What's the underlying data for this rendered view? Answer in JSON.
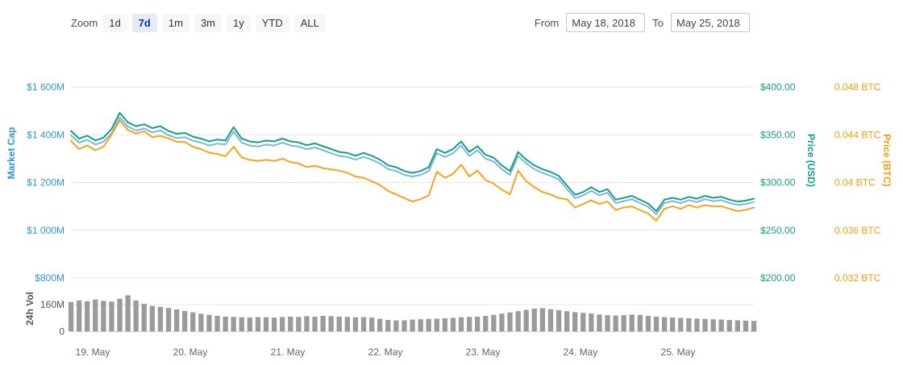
{
  "toolbar": {
    "zoom_label": "Zoom",
    "zoom_buttons": [
      {
        "label": "1d",
        "active": false
      },
      {
        "label": "7d",
        "active": true
      },
      {
        "label": "1m",
        "active": false
      },
      {
        "label": "3m",
        "active": false
      },
      {
        "label": "1y",
        "active": false
      },
      {
        "label": "YTD",
        "active": false
      },
      {
        "label": "ALL",
        "active": false
      }
    ],
    "from_label": "From",
    "from_value": "May 18, 2018",
    "to_label": "To",
    "to_value": "May 25, 2018"
  },
  "chart_data": {
    "type": "line",
    "title": "",
    "date_range": [
      "May 18, 2018",
      "May 25, 2018"
    ],
    "axes": {
      "market_cap": {
        "title": "Market Cap",
        "color": "#3097d1",
        "range": [
          800,
          1600
        ],
        "ticks": [
          {
            "label": "$1 600M",
            "value": 1600
          },
          {
            "label": "$1 400M",
            "value": 1400
          },
          {
            "label": "$1 200M",
            "value": 1200
          },
          {
            "label": "$1 000M",
            "value": 1000
          },
          {
            "label": "$800M",
            "value": 800
          }
        ]
      },
      "price_usd": {
        "title": "Price (USD)",
        "color": "#16a085",
        "range": [
          200,
          400
        ],
        "ticks": [
          {
            "label": "$400.00",
            "value": 400
          },
          {
            "label": "$350.00",
            "value": 350
          },
          {
            "label": "$300.00",
            "value": 300
          },
          {
            "label": "$250.00",
            "value": 250
          },
          {
            "label": "$200.00",
            "value": 200
          }
        ]
      },
      "price_btc": {
        "title": "Price (BTC)",
        "color": "#f39c12",
        "range": [
          0.032,
          0.048
        ],
        "ticks": [
          {
            "label": "0.048 BTC",
            "value": 0.048
          },
          {
            "label": "0.044 BTC",
            "value": 0.044
          },
          {
            "label": "0.04 BTC",
            "value": 0.04
          },
          {
            "label": "0.036 BTC",
            "value": 0.036
          },
          {
            "label": "0.032 BTC",
            "value": 0.032
          }
        ]
      },
      "volume": {
        "title": "24h Vol",
        "color": "#555555",
        "range": [
          0,
          160
        ],
        "ticks": [
          {
            "label": "160M",
            "value": 160
          },
          {
            "label": "0",
            "value": 0
          }
        ]
      }
    },
    "xticks": {
      "labels": [
        "19. May",
        "20. May",
        "21. May",
        "22. May",
        "23. May",
        "24. May",
        "25. May"
      ],
      "fracs": [
        0.0319,
        0.1747,
        0.3176,
        0.4604,
        0.6033,
        0.7461,
        0.889
      ]
    },
    "series": [
      {
        "name": "Market Cap",
        "axis": "market_cap",
        "kind": "line",
        "color": "#7fb5e3",
        "unit": "USD millions",
        "values": [
          1398,
          1367,
          1379,
          1359,
          1371,
          1406,
          1473,
          1434,
          1418,
          1426,
          1410,
          1418,
          1398,
          1386,
          1390,
          1375,
          1367,
          1355,
          1363,
          1359,
          1414,
          1367,
          1355,
          1351,
          1359,
          1355,
          1367,
          1355,
          1351,
          1339,
          1347,
          1335,
          1323,
          1311,
          1307,
          1296,
          1307,
          1296,
          1280,
          1256,
          1248,
          1232,
          1225,
          1232,
          1248,
          1323,
          1307,
          1323,
          1355,
          1311,
          1335,
          1300,
          1288,
          1256,
          1232,
          1311,
          1280,
          1256,
          1240,
          1228,
          1213,
          1173,
          1134,
          1146,
          1165,
          1146,
          1157,
          1114,
          1122,
          1130,
          1114,
          1098,
          1067,
          1114,
          1122,
          1114,
          1126,
          1118,
          1130,
          1122,
          1126,
          1114,
          1106,
          1110,
          1118
        ]
      },
      {
        "name": "Price (USD)",
        "axis": "price_usd",
        "kind": "line",
        "color": "#16a085",
        "unit": "USD",
        "values": [
          354,
          346,
          349,
          344,
          347,
          356,
          373,
          363,
          359,
          361,
          357,
          359,
          354,
          351,
          352,
          348,
          346,
          343,
          345,
          344,
          358,
          346,
          343,
          342,
          344,
          343,
          346,
          343,
          342,
          339,
          341,
          338,
          335,
          332,
          331,
          328,
          331,
          328,
          324,
          318,
          316,
          312,
          310,
          312,
          316,
          335,
          331,
          335,
          343,
          332,
          338,
          329,
          326,
          318,
          312,
          332,
          324,
          318,
          314,
          311,
          307,
          297,
          287,
          290,
          295,
          290,
          293,
          282,
          284,
          286,
          282,
          278,
          270,
          282,
          284,
          282,
          285,
          283,
          286,
          284,
          285,
          282,
          280,
          281,
          283
        ]
      },
      {
        "name": "Price (BTC)",
        "axis": "price_btc",
        "kind": "line",
        "color": "#f8a31c",
        "unit": "BTC",
        "values": [
          0.0435,
          0.0428,
          0.0431,
          0.0427,
          0.043,
          0.044,
          0.0452,
          0.0444,
          0.0441,
          0.0443,
          0.0438,
          0.0439,
          0.0437,
          0.0434,
          0.0434,
          0.043,
          0.0428,
          0.0425,
          0.0424,
          0.0422,
          0.043,
          0.0421,
          0.0419,
          0.0418,
          0.0419,
          0.0418,
          0.042,
          0.0417,
          0.0416,
          0.0413,
          0.0414,
          0.0412,
          0.0411,
          0.041,
          0.0408,
          0.0405,
          0.0404,
          0.0401,
          0.0398,
          0.0393,
          0.039,
          0.0387,
          0.0384,
          0.0386,
          0.0389,
          0.0409,
          0.0404,
          0.0407,
          0.0415,
          0.0405,
          0.041,
          0.0402,
          0.0399,
          0.0394,
          0.039,
          0.041,
          0.0401,
          0.0396,
          0.0392,
          0.039,
          0.0387,
          0.0386,
          0.0379,
          0.0382,
          0.0385,
          0.0382,
          0.0384,
          0.0377,
          0.0379,
          0.038,
          0.0377,
          0.0374,
          0.0368,
          0.0378,
          0.038,
          0.0378,
          0.0381,
          0.0379,
          0.0381,
          0.038,
          0.038,
          0.0378,
          0.0376,
          0.0377,
          0.0379
        ]
      },
      {
        "name": "24h Vol",
        "axis": "volume",
        "kind": "bar",
        "color": "#9b9b9b",
        "unit": "USD millions",
        "values": [
          175,
          185,
          180,
          190,
          182,
          178,
          195,
          215,
          185,
          165,
          152,
          146,
          140,
          132,
          122,
          114,
          106,
          99,
          93,
          89,
          87,
          85,
          84,
          86,
          85,
          83,
          86,
          89,
          87,
          91,
          89,
          93,
          91,
          89,
          87,
          85,
          86,
          83,
          76,
          69,
          66,
          67,
          71,
          73,
          75,
          77,
          79,
          81,
          85,
          87,
          89,
          93,
          99,
          106,
          113,
          121,
          129,
          136,
          139,
          133,
          127,
          121,
          115,
          111,
          107,
          101,
          97,
          95,
          97,
          101,
          99,
          93,
          89,
          85,
          83,
          81,
          79,
          77,
          75,
          73,
          71,
          69,
          67,
          65,
          63
        ]
      }
    ],
    "legend": "none",
    "grid": "horizontal"
  }
}
